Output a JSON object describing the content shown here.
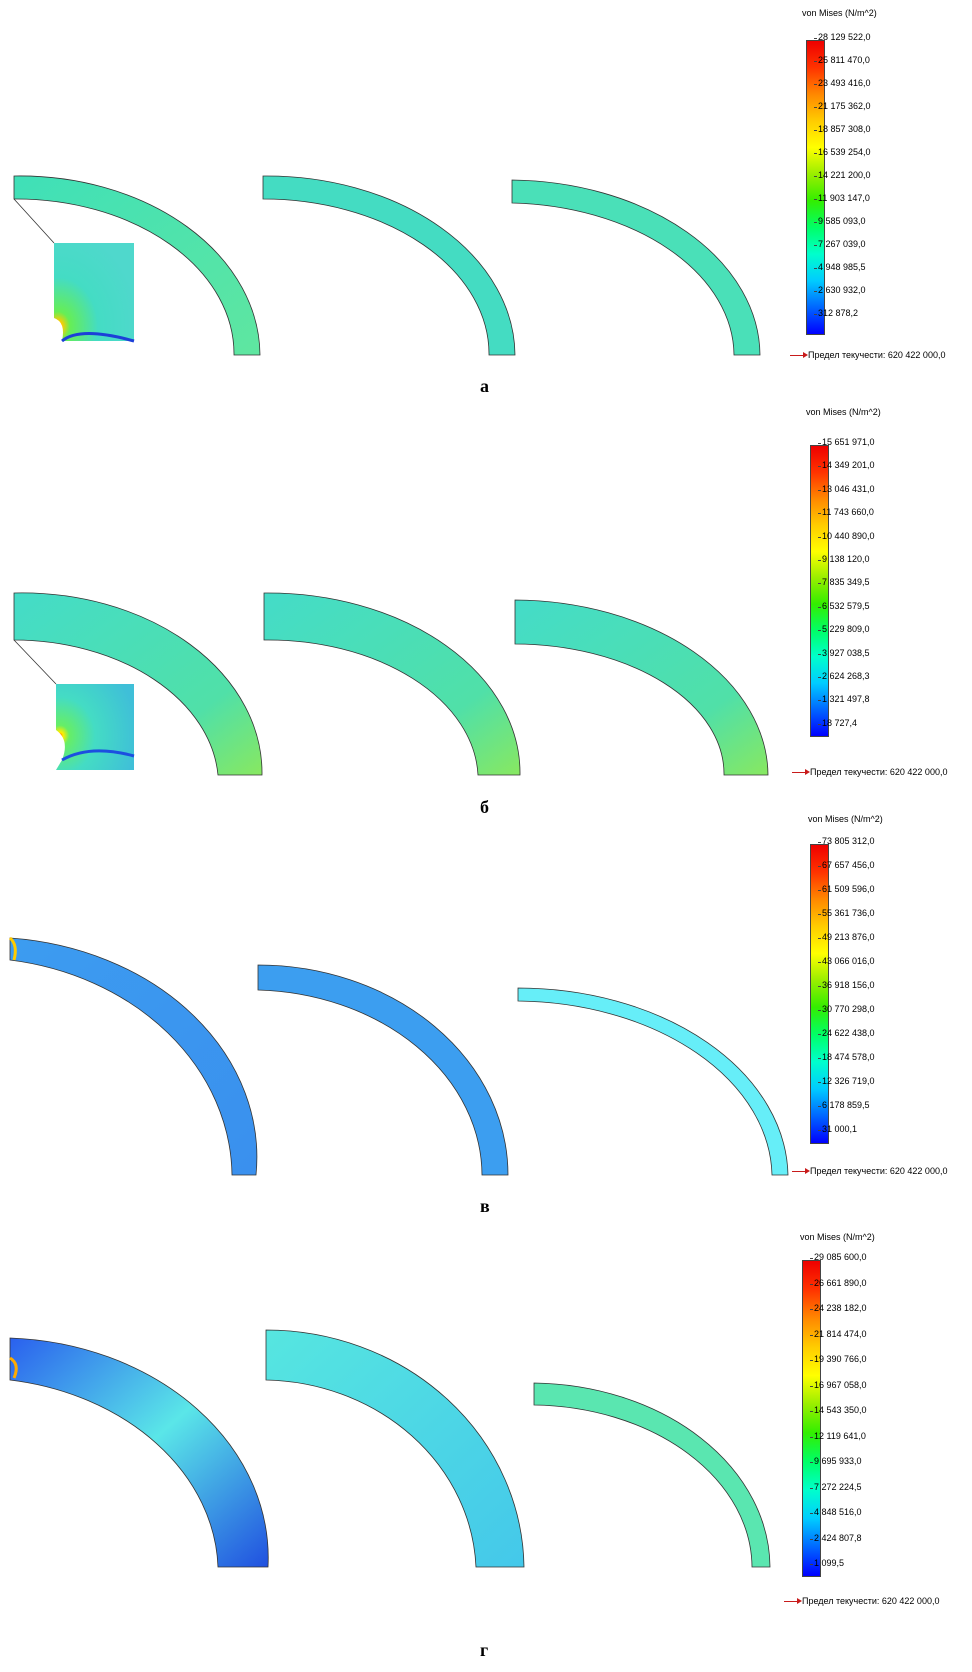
{
  "panels": [
    {
      "label": "а",
      "legend_title": "von Mises (N/m^2)",
      "ticks": [
        "28 129 522,0",
        "25 811 470,0",
        "23 493 416,0",
        "21 175 362,0",
        "18 857 308,0",
        "16 539 254,0",
        "14 221 200,0",
        "11 903 147,0",
        "9 585 093,0",
        "7 267 039,0",
        "4 948 985,5",
        "2 630 932,0",
        "312 878,2"
      ],
      "yield_text": "Предел текучести: 620 422 000,0"
    },
    {
      "label": "б",
      "legend_title": "von Mises (N/m^2)",
      "ticks": [
        "15 651 971,0",
        "14 349 201,0",
        "13 046 431,0",
        "11 743 660,0",
        "10 440 890,0",
        "9 138 120,0",
        "7 835 349,5",
        "6 532 579,5",
        "5 229 809,0",
        "3 927 038,5",
        "2 624 268,3",
        "1 321 497,8",
        "18 727,4"
      ],
      "yield_text": "Предел текучести: 620 422 000,0"
    },
    {
      "label": "в",
      "legend_title": "von Mises (N/m^2)",
      "ticks": [
        "73 805 312,0",
        "67 657 456,0",
        "61 509 596,0",
        "55 361 736,0",
        "49 213 876,0",
        "43 066 016,0",
        "36 918 156,0",
        "30 770 298,0",
        "24 622 438,0",
        "18 474 578,0",
        "12 326 719,0",
        "6 178 859,5",
        "31 000,1"
      ],
      "yield_text": "Предел текучести: 620 422 000,0"
    },
    {
      "label": "г",
      "legend_title": "von Mises (N/m^2)",
      "ticks": [
        "29 085 600,0",
        "26 661 890,0",
        "24 238 182,0",
        "21 814 474,0",
        "19 390 766,0",
        "16 967 058,0",
        "14 543 350,0",
        "12 119 641,0",
        "9 695 933,0",
        "7 272 224,5",
        "4 848 516,0",
        "2 424 807,8",
        "1 099,5"
      ],
      "yield_text": "Предел текучести: 620 422 000,0"
    }
  ],
  "colors": {
    "scale": [
      "#0000ff",
      "#0066ff",
      "#00ccff",
      "#00ffcc",
      "#00ff66",
      "#33ee00",
      "#99ee00",
      "#ffff00",
      "#ffcc00",
      "#ff8800",
      "#ff3300",
      "#ee0000"
    ],
    "arrow": "#c81b1b",
    "outline": "#333333"
  }
}
